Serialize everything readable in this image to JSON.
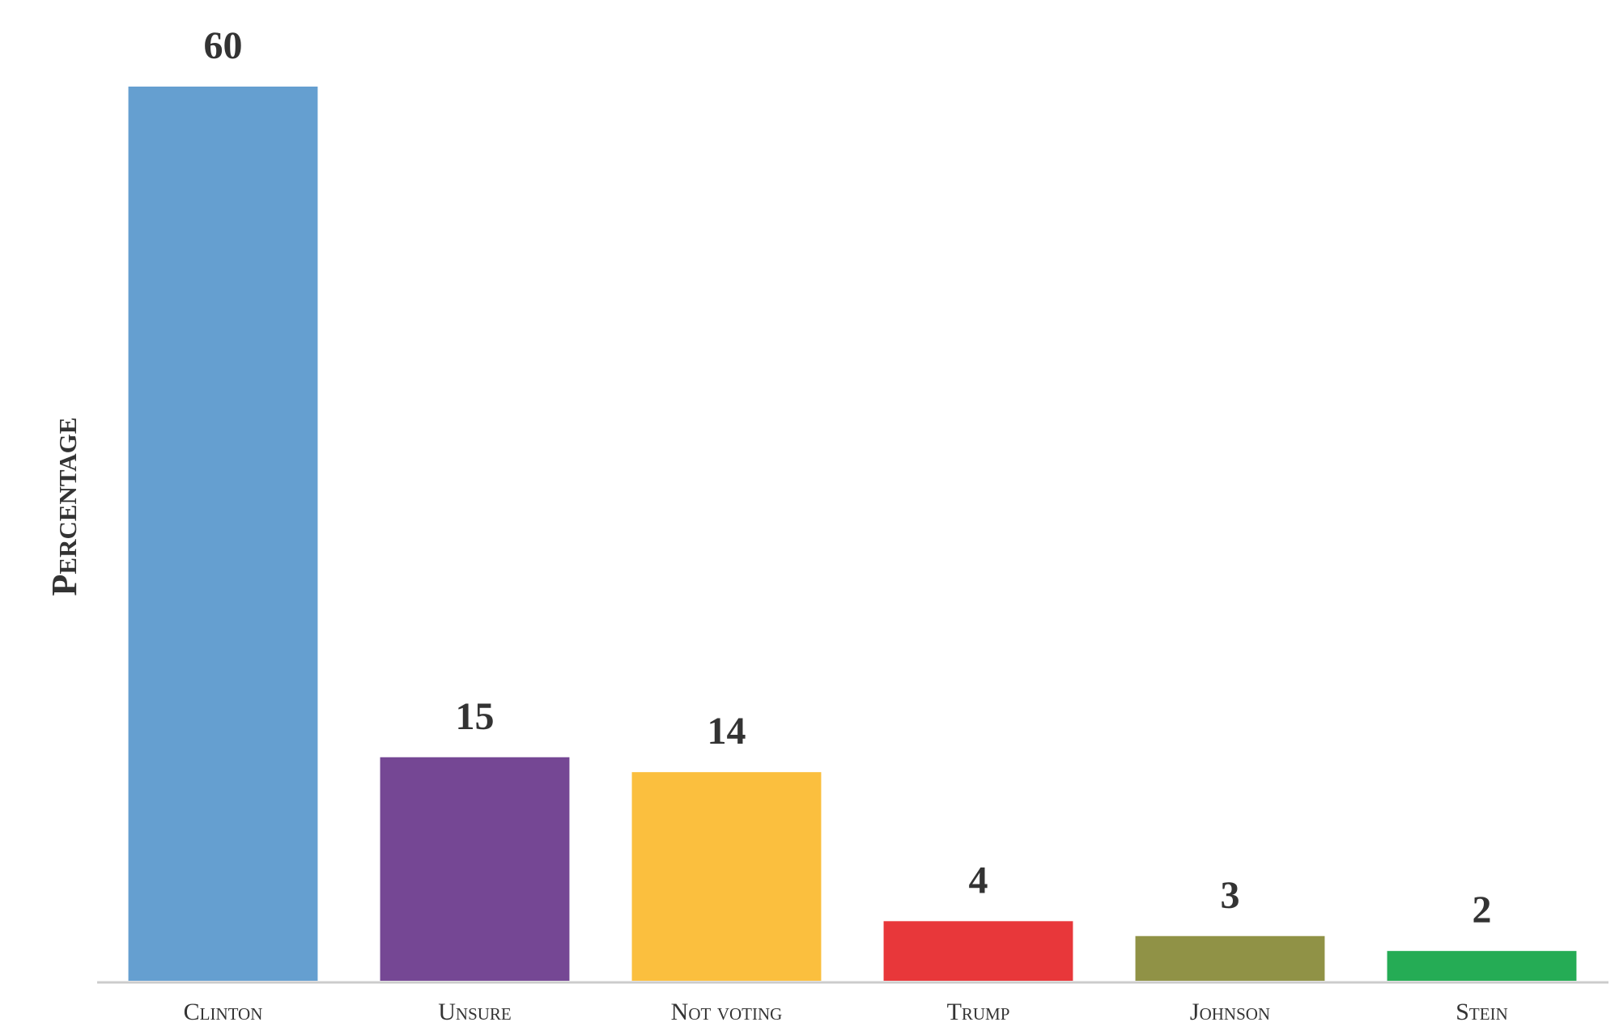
{
  "chart_data": {
    "type": "bar",
    "y_label": "Percentage",
    "categories": [
      "Clinton",
      "Unsure",
      "Not voting",
      "Trump",
      "Johnson",
      "Stein"
    ],
    "values": [
      60,
      15,
      14,
      4,
      3,
      2
    ],
    "colors": [
      "#659fd0",
      "#754794",
      "#fbbf3e",
      "#e8373a",
      "#909246",
      "#25ac55"
    ],
    "ylim": [
      0,
      60
    ]
  }
}
